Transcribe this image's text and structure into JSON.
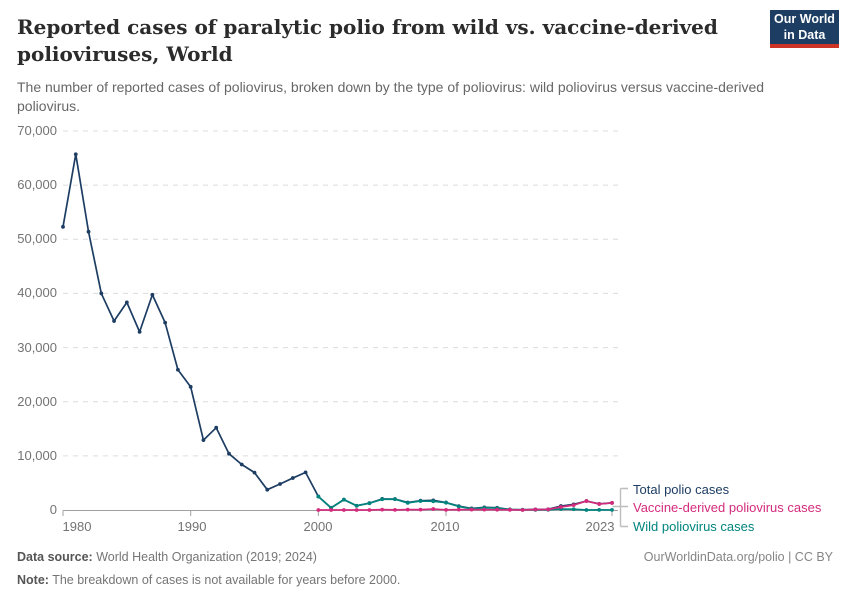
{
  "header": {
    "title": "Reported cases of paralytic polio from wild vs. vaccine-derived polioviruses, World",
    "subtitle": "The number of reported cases of poliovirus, broken down by the type of poliovirus: wild poliovirus versus vaccine-derived poliovirus."
  },
  "logo": {
    "line1": "Our World",
    "line2": "in Data",
    "bg": "#1D3D63",
    "accent": "#CC3426"
  },
  "chart_data": {
    "type": "line",
    "title": "Reported cases of paralytic polio from wild vs. vaccine-derived polioviruses, World",
    "x": [
      1980,
      1981,
      1982,
      1983,
      1984,
      1985,
      1986,
      1987,
      1988,
      1989,
      1990,
      1991,
      1992,
      1993,
      1994,
      1995,
      1996,
      1997,
      1998,
      1999,
      2000,
      2001,
      2002,
      2003,
      2004,
      2005,
      2006,
      2007,
      2008,
      2009,
      2010,
      2011,
      2012,
      2013,
      2014,
      2015,
      2016,
      2017,
      2018,
      2019,
      2020,
      2021,
      2022,
      2023
    ],
    "series": [
      {
        "name": "Total polio cases",
        "color": "#1D3D63",
        "values": [
          52300,
          65700,
          51400,
          40000,
          34900,
          38350,
          32900,
          39750,
          34600,
          25900,
          22750,
          12900,
          15200,
          10400,
          8400,
          6900,
          3750,
          4800,
          5900,
          6950,
          2500,
          400,
          1920,
          790,
          1260,
          2045,
          2020,
          1385,
          1720,
          1780,
          1380,
          720,
          290,
          480,
          415,
          105,
          40,
          118,
          140,
          725,
          1040,
          1656,
          1130,
          1312
        ]
      },
      {
        "name": "Wild poliovirus cases",
        "color": "#00847E",
        "values": [
          null,
          null,
          null,
          null,
          null,
          null,
          null,
          null,
          null,
          null,
          null,
          null,
          null,
          null,
          null,
          null,
          null,
          null,
          null,
          null,
          2500,
          397,
          1918,
          788,
          1258,
          1979,
          2000,
          1316,
          1652,
          1605,
          1350,
          653,
          222,
          415,
          359,
          73,
          35,
          22,
          36,
          175,
          140,
          6,
          30,
          12
        ]
      },
      {
        "name": "Vaccine-derived poliovirus cases",
        "color": "#D42B7C",
        "values": [
          null,
          null,
          null,
          null,
          null,
          null,
          null,
          null,
          null,
          null,
          null,
          null,
          null,
          null,
          null,
          null,
          null,
          null,
          null,
          null,
          0,
          3,
          2,
          2,
          2,
          66,
          20,
          69,
          68,
          175,
          30,
          67,
          68,
          65,
          56,
          32,
          5,
          96,
          104,
          550,
          900,
          1650,
          1100,
          1300
        ]
      }
    ],
    "ylim": [
      0,
      70000
    ],
    "ytick_values": [
      0,
      10000,
      20000,
      30000,
      40000,
      50000,
      60000,
      70000
    ],
    "ytick_labels": [
      "0",
      "10,000",
      "20,000",
      "30,000",
      "40,000",
      "50,000",
      "60,000",
      "70,000"
    ],
    "xtick_years": [
      1980,
      1990,
      2000,
      2010,
      2023
    ],
    "xtick_labels": [
      "1980",
      "1990",
      "2000",
      "2010",
      "2023"
    ],
    "grid": "horizontal-dashed",
    "legend_position": "right-of-line-ends"
  },
  "legend": {
    "items": [
      {
        "label": "Total polio cases",
        "color": "#1D3D63"
      },
      {
        "label": "Vaccine-derived poliovirus cases",
        "color": "#D42B7C"
      },
      {
        "label": "Wild poliovirus cases",
        "color": "#00847E"
      }
    ]
  },
  "footer": {
    "source_label": "Data source:",
    "source_value": "World Health Organization (2019; 2024)",
    "note_label": "Note:",
    "note_value": "The breakdown of cases is not available for years before 2000.",
    "link": "OurWorldinData.org/polio | CC BY"
  }
}
